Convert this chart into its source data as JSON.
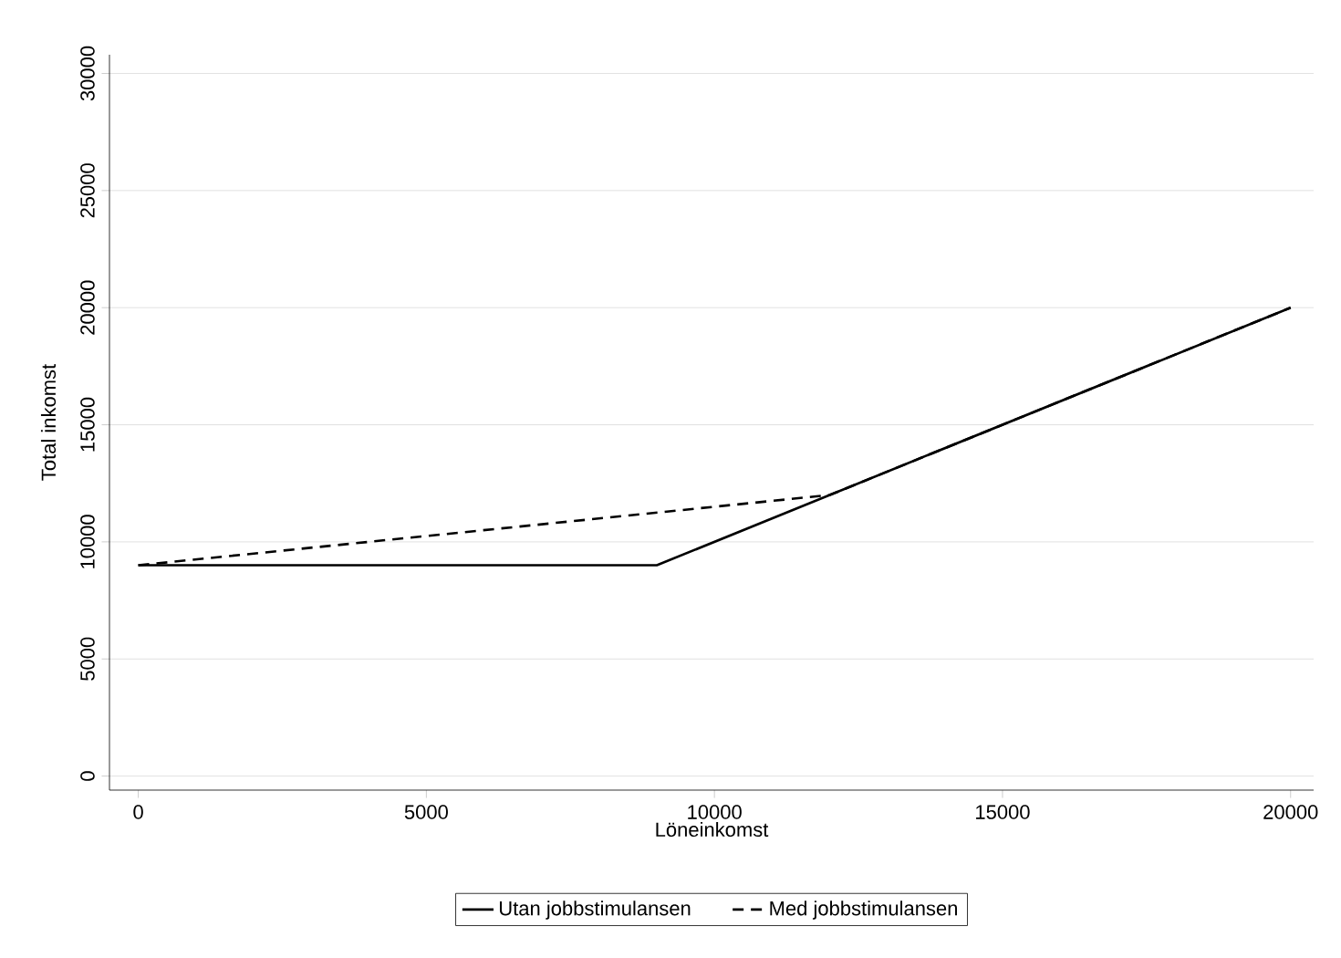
{
  "chart_data": {
    "type": "line",
    "xlabel": "Löneinkomst",
    "ylabel": "Total inkomst",
    "xlim": [
      -500,
      20400
    ],
    "ylim": [
      -600,
      30800
    ],
    "xticks": [
      0,
      5000,
      10000,
      15000,
      20000
    ],
    "yticks": [
      0,
      5000,
      10000,
      15000,
      20000,
      25000,
      30000
    ],
    "grid": "y",
    "legend": "bottom",
    "marker": "none",
    "series": [
      {
        "name": "Utan jobbstimulansen",
        "color": "#000000",
        "line_style": "solid",
        "x": [
          0,
          9000,
          20000
        ],
        "values": [
          9000,
          9000,
          20000
        ]
      },
      {
        "name": "Med jobbstimulansen",
        "color": "#000000",
        "line_style": "dashed",
        "x": [
          0,
          12000,
          20000
        ],
        "values": [
          9000,
          12000,
          20000
        ]
      }
    ]
  }
}
